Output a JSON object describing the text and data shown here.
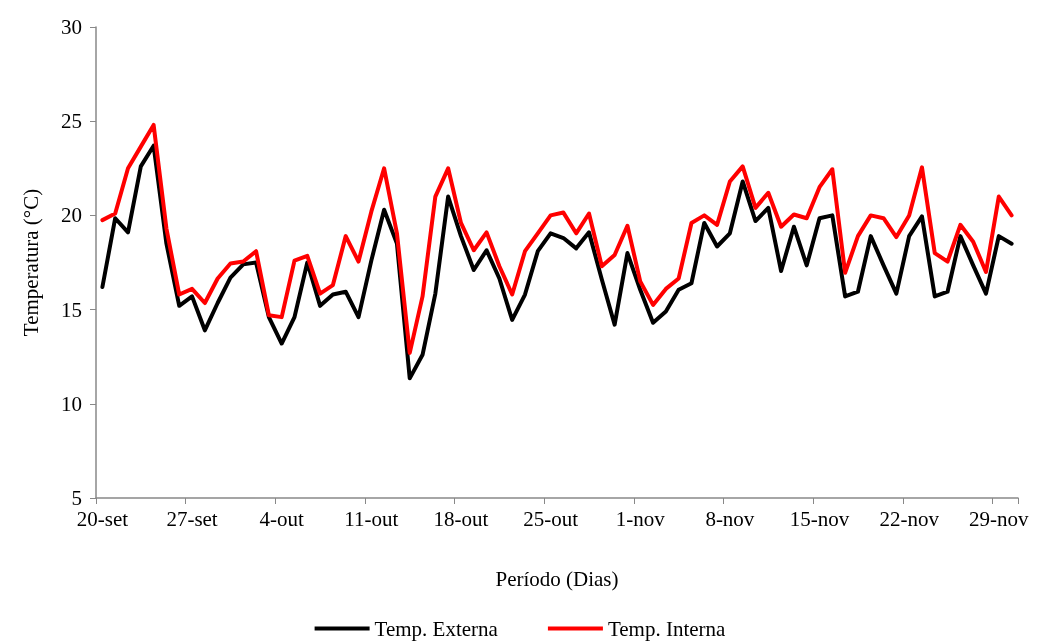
{
  "chart_data": {
    "type": "line",
    "xlabel": "Período (Dias)",
    "ylabel": "Temperatura (°C)",
    "categories": [
      "20-set",
      null,
      null,
      null,
      null,
      null,
      null,
      "27-set",
      null,
      null,
      null,
      null,
      null,
      null,
      "4-out",
      null,
      null,
      null,
      null,
      null,
      null,
      "11-out",
      null,
      null,
      null,
      null,
      null,
      null,
      "18-out",
      null,
      null,
      null,
      null,
      null,
      null,
      "25-out",
      null,
      null,
      null,
      null,
      null,
      null,
      "1-nov",
      null,
      null,
      null,
      null,
      null,
      null,
      "8-nov",
      null,
      null,
      null,
      null,
      null,
      null,
      "15-nov",
      null,
      null,
      null,
      null,
      null,
      null,
      "22-nov",
      null,
      null,
      null,
      null,
      null,
      null,
      "29-nov",
      null
    ],
    "series": [
      {
        "name": "Temp. Externa",
        "color": "#000000",
        "values": [
          16.2,
          19.85,
          19.1,
          22.6,
          23.7,
          18.5,
          15.2,
          15.7,
          13.9,
          15.35,
          16.7,
          17.4,
          17.5,
          14.6,
          13.2,
          14.6,
          17.5,
          15.2,
          15.8,
          15.95,
          14.6,
          17.6,
          20.3,
          18.5,
          11.35,
          12.6,
          15.85,
          21.0,
          18.9,
          17.1,
          18.15,
          16.65,
          14.45,
          15.8,
          18.1,
          19.05,
          18.8,
          18.25,
          19.1,
          16.6,
          14.2,
          18.0,
          16.05,
          14.3,
          14.9,
          16.05,
          16.4,
          19.6,
          18.35,
          19.05,
          21.8,
          19.7,
          20.4,
          17.05,
          19.4,
          17.35,
          19.85,
          20.0,
          15.7,
          15.95,
          18.9,
          17.35,
          15.85,
          18.9,
          19.95,
          15.7,
          15.95,
          18.9,
          17.35,
          15.85,
          18.9,
          18.5
        ]
      },
      {
        "name": "Temp. Interna",
        "color": "#ff0000",
        "values": [
          19.75,
          20.1,
          22.5,
          23.65,
          24.8,
          19.3,
          15.8,
          16.1,
          15.35,
          16.65,
          17.45,
          17.55,
          18.1,
          14.7,
          14.6,
          17.6,
          17.85,
          15.85,
          16.3,
          18.9,
          17.55,
          20.2,
          22.5,
          19.05,
          12.7,
          15.7,
          21.0,
          22.5,
          19.6,
          18.15,
          19.1,
          17.3,
          15.8,
          18.1,
          19.05,
          20.0,
          20.15,
          19.05,
          20.1,
          17.3,
          17.9,
          19.45,
          16.5,
          15.25,
          16.1,
          16.65,
          19.6,
          20.0,
          19.5,
          21.8,
          22.6,
          20.4,
          21.2,
          19.4,
          20.05,
          19.85,
          21.5,
          22.45,
          16.95,
          18.9,
          20.0,
          19.85,
          18.85,
          20.0,
          22.55,
          18.0,
          17.55,
          19.5,
          18.6,
          17.0,
          21.0,
          20.0
        ]
      }
    ],
    "ylim": [
      5,
      30
    ],
    "yticks": [
      5,
      10,
      15,
      20,
      25,
      30
    ],
    "grid": false,
    "legend": "bottom",
    "marker": "none",
    "line_style": "solid"
  }
}
